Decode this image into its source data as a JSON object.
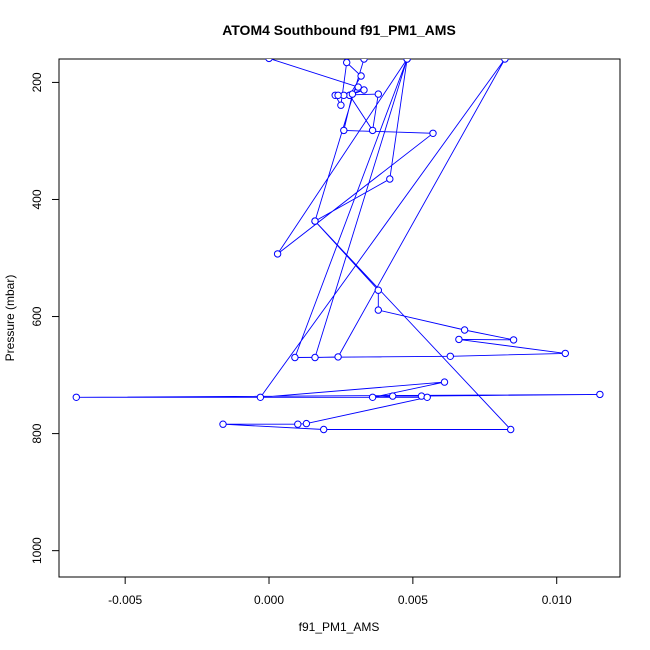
{
  "chart_data": {
    "type": "line",
    "title": "ATOM4 Southbound f91_PM1_AMS",
    "xlabel": "f91_PM1_AMS",
    "ylabel": "Pressure (mbar)",
    "xlim": [
      -0.0073,
      0.0122
    ],
    "ylim": [
      1045,
      160
    ],
    "y_reversed": true,
    "x_ticks": [
      {
        "value": -0.005,
        "label": "-0.005"
      },
      {
        "value": 0.0,
        "label": "0.000"
      },
      {
        "value": 0.005,
        "label": "0.005"
      },
      {
        "value": 0.01,
        "label": "0.010"
      }
    ],
    "y_ticks": [
      {
        "value": 200,
        "label": "200"
      },
      {
        "value": 400,
        "label": "400"
      },
      {
        "value": 600,
        "label": "600"
      },
      {
        "value": 800,
        "label": "800"
      },
      {
        "value": 1000,
        "label": "1000"
      }
    ],
    "grid": false,
    "legend": "none",
    "series_color": "#0000ff",
    "series": [
      {
        "x": [
          0.0,
          0.0031,
          0.0028,
          0.0032,
          0.0027,
          0.0025,
          0.0023,
          0.0038,
          0.0036,
          0.0028,
          0.0033,
          0.0026,
          0.0024,
          0.0029,
          0.0026,
          0.0057,
          0.0003,
          0.0048,
          0.0042,
          0.0016,
          0.0038,
          0.0038,
          0.0068,
          0.0085,
          0.0066,
          0.0103,
          0.0063,
          0.0009,
          0.0048,
          0.0016,
          0.0024,
          0.0082,
          -0.0003,
          0.0061,
          0.0036,
          0.0043,
          0.0053,
          0.0115,
          -0.0067,
          0.0055,
          0.0013,
          0.001,
          -0.0016,
          0.0019,
          0.0084,
          0.0016,
          0.0033
        ],
        "y": [
          159,
          208,
          222,
          189,
          166,
          239,
          222,
          220,
          282,
          222,
          213,
          222,
          222,
          220,
          282,
          287,
          493,
          160,
          365,
          437,
          555,
          589,
          623,
          640,
          639,
          663,
          668,
          670,
          160,
          670,
          669,
          160,
          738,
          712,
          738,
          736,
          736,
          733,
          738,
          738,
          783,
          784,
          784,
          793,
          793,
          437,
          160
        ]
      }
    ]
  }
}
